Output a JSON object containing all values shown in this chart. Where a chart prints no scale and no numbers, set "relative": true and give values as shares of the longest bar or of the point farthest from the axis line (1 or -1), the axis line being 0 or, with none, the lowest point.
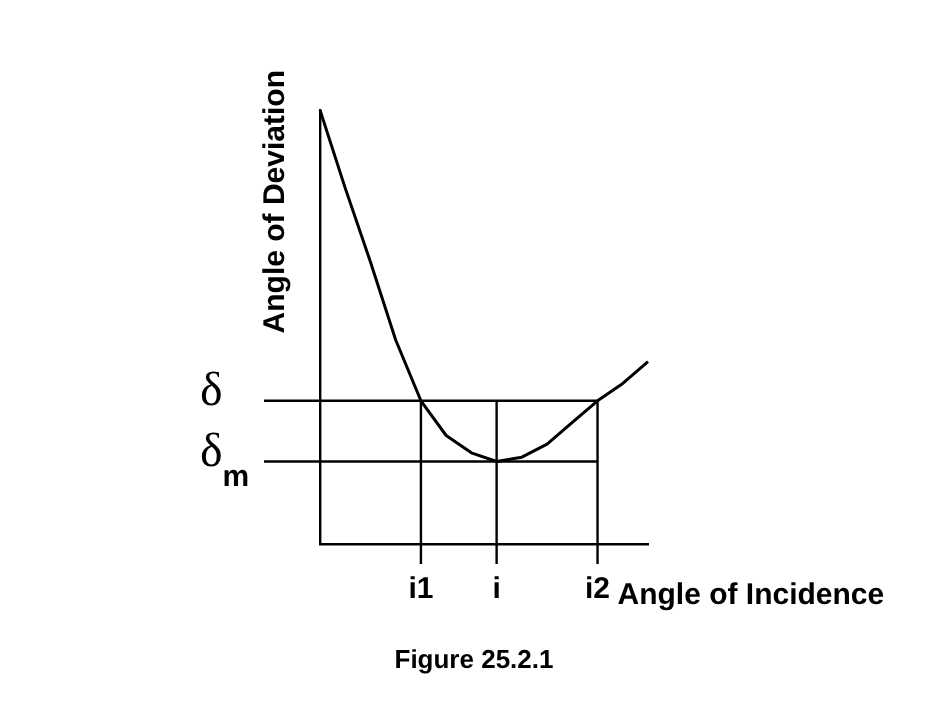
{
  "chart_data": {
    "type": "line",
    "ylabel": "Angle of Deviation",
    "xlabel": "Angle of Incidence",
    "categories": [
      null,
      null,
      null,
      null,
      "i1",
      null,
      null,
      "i",
      null,
      null,
      null,
      "i2",
      null,
      null
    ],
    "values": [
      1.0,
      0.82,
      0.65,
      0.47,
      0.33,
      0.25,
      0.21,
      0.19,
      0.2,
      0.23,
      0.28,
      0.33,
      0.37,
      0.42
    ],
    "color": "#000000",
    "relative": true,
    "marker": "none",
    "line_style": "solid",
    "grid": false,
    "legend": false,
    "ref_lines": [
      {
        "axis": "y",
        "value": 0.33,
        "label": "δ"
      },
      {
        "axis": "y",
        "value": 0.19,
        "label": "δ$_{m}$"
      },
      {
        "axis": "x",
        "value": "i1"
      },
      {
        "axis": "x",
        "value": "i"
      },
      {
        "axis": "x",
        "value": "i2"
      }
    ],
    "annotations": [
      "Figure 25.2.1"
    ]
  }
}
